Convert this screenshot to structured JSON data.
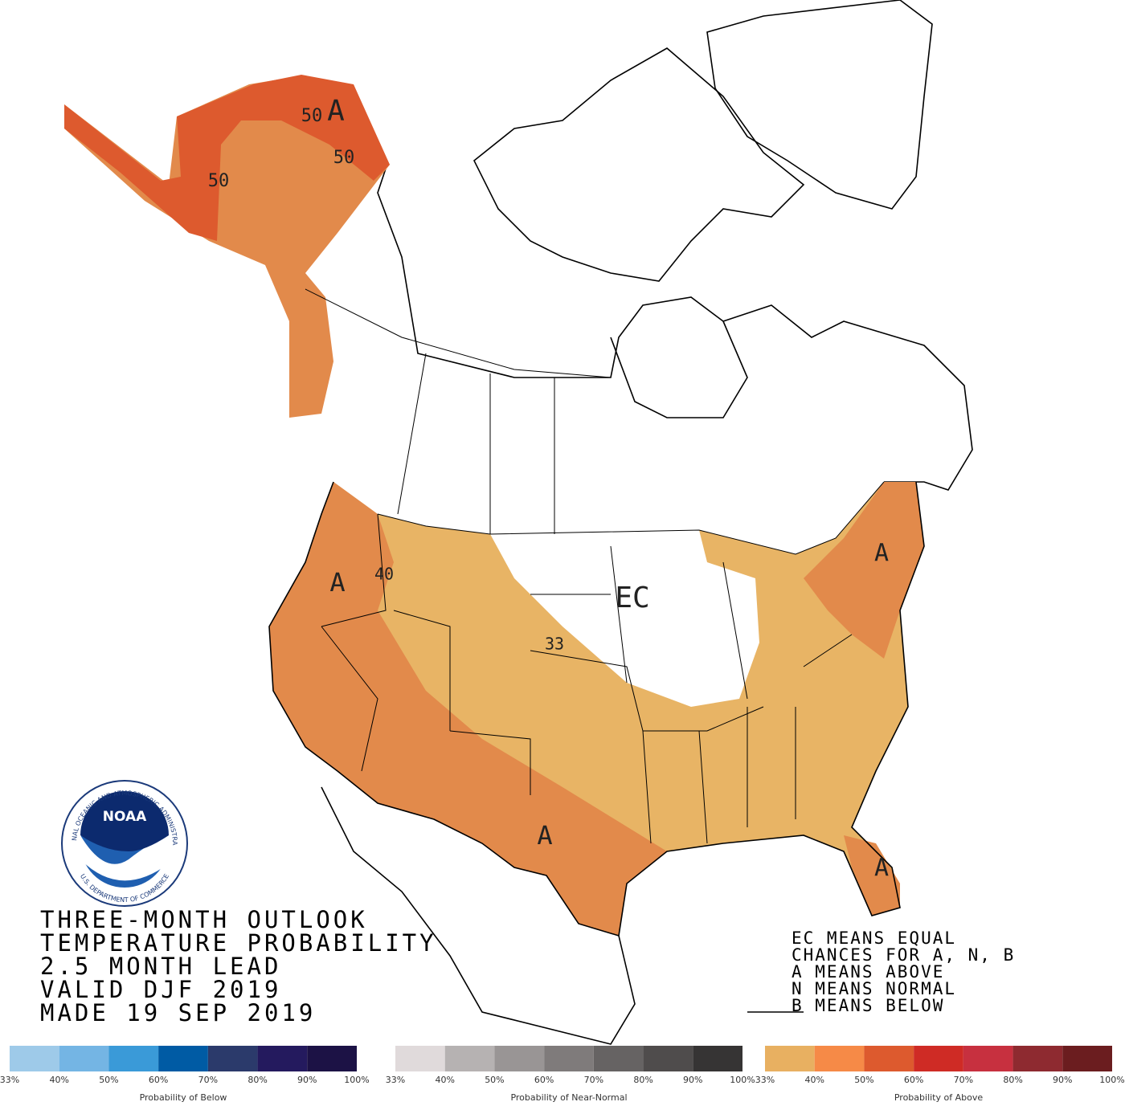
{
  "title_lines": [
    "THREE-MONTH OUTLOOK",
    "TEMPERATURE PROBABILITY",
    "2.5 MONTH LEAD",
    "VALID DJF 2019",
    "MADE 19 SEP 2019"
  ],
  "notes": [
    "EC MEANS EQUAL",
    "CHANCES FOR A, N, B",
    "A MEANS ABOVE",
    "N MEANS NORMAL",
    "B MEANS BELOW"
  ],
  "map_labels": [
    "A",
    "50",
    "50",
    "50",
    "A",
    "40",
    "EC",
    "33",
    "A",
    "A",
    "A"
  ],
  "logo": {
    "name": "NOAA",
    "ring": "NATIONAL OCEANIC AND ATMOSPHERIC ADMINISTRATION",
    "bottom": "U.S. DEPARTMENT OF COMMERCE"
  },
  "legends": [
    {
      "title": "Probability of Below",
      "colors": [
        "#9ecae9",
        "#74b5e4",
        "#3a9ad8",
        "#005ba4",
        "#2b3a6b",
        "#241a5e",
        "#1c1245"
      ],
      "labels": [
        "33%",
        "40%",
        "50%",
        "60%",
        "70%",
        "80%",
        "90%",
        "100%"
      ]
    },
    {
      "title": "Probability of Near-Normal",
      "colors": [
        "#e0dadb",
        "#b6b2b2",
        "#999595",
        "#7f7b7b",
        "#666363",
        "#4f4c4c",
        "#363434"
      ],
      "labels": [
        "33%",
        "40%",
        "50%",
        "60%",
        "70%",
        "80%",
        "90%",
        "100%"
      ]
    },
    {
      "title": "Probability of Above",
      "colors": [
        "#e8b061",
        "#f68a47",
        "#dd5a2e",
        "#cf2b25",
        "#c7303f",
        "#8e2a30",
        "#6b1d1f"
      ],
      "labels": [
        "33%",
        "40%",
        "50%",
        "60%",
        "70%",
        "80%",
        "90%",
        "100%"
      ]
    }
  ]
}
